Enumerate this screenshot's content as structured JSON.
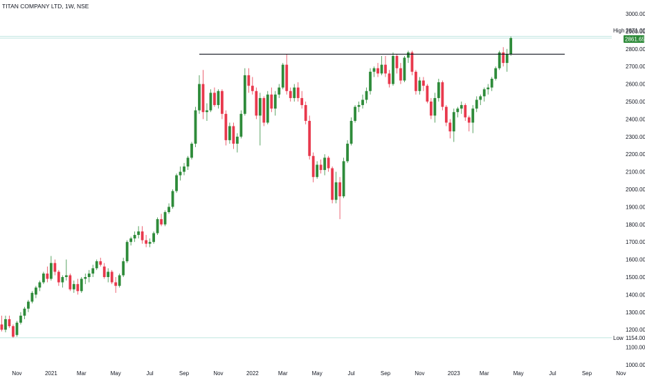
{
  "title": "TITAN COMPANY LTD, 1W, NSE",
  "colors": {
    "up": "#2e8b3a",
    "down": "#e8394d",
    "resistance": "#131722",
    "guide": "#a8dcd4",
    "lastPriceTag": "#2e8b3a",
    "text": "#131722"
  },
  "markers": {
    "high": {
      "label": "High",
      "value": "2871.00"
    },
    "last": {
      "value": "2861.65"
    },
    "low": {
      "label": "Low",
      "value": "1154.00"
    }
  },
  "resistance_level": 2770,
  "chart_data": {
    "type": "candlestick",
    "title": "TITAN COMPANY LTD, 1W, NSE",
    "ylim": [
      980,
      3020
    ],
    "y_ticks": [
      "1000.00",
      "1100.00",
      "1200.00",
      "1300.00",
      "1400.00",
      "1500.00",
      "1600.00",
      "1700.00",
      "1800.00",
      "1900.00",
      "2000.00",
      "2100.00",
      "2200.00",
      "2300.00",
      "2400.00",
      "2500.00",
      "2600.00",
      "2700.00",
      "2800.00",
      "2900.00",
      "3000.00"
    ],
    "x_ticks": [
      {
        "label": "Nov",
        "i": 4
      },
      {
        "label": "2021",
        "i": 13
      },
      {
        "label": "Mar",
        "i": 21
      },
      {
        "label": "May",
        "i": 30
      },
      {
        "label": "Jul",
        "i": 39
      },
      {
        "label": "Sep",
        "i": 48
      },
      {
        "label": "Nov",
        "i": 57
      },
      {
        "label": "2022",
        "i": 66
      },
      {
        "label": "Mar",
        "i": 74
      },
      {
        "label": "May",
        "i": 83
      },
      {
        "label": "Jul",
        "i": 92
      },
      {
        "label": "Sep",
        "i": 101
      },
      {
        "label": "Nov",
        "i": 110
      },
      {
        "label": "2023",
        "i": 119
      },
      {
        "label": "Mar",
        "i": 127
      },
      {
        "label": "May",
        "i": 136
      },
      {
        "label": "Jul",
        "i": 145
      },
      {
        "label": "Sep",
        "i": 154
      },
      {
        "label": "Nov",
        "i": 163
      }
    ],
    "ohlc": [
      [
        1230,
        1280,
        1190,
        1200
      ],
      [
        1200,
        1280,
        1185,
        1260
      ],
      [
        1260,
        1280,
        1210,
        1220
      ],
      [
        1220,
        1230,
        1154,
        1160
      ],
      [
        1170,
        1250,
        1160,
        1240
      ],
      [
        1240,
        1300,
        1230,
        1280
      ],
      [
        1280,
        1330,
        1260,
        1320
      ],
      [
        1320,
        1370,
        1300,
        1360
      ],
      [
        1360,
        1420,
        1350,
        1410
      ],
      [
        1400,
        1450,
        1380,
        1440
      ],
      [
        1440,
        1480,
        1420,
        1470
      ],
      [
        1470,
        1530,
        1460,
        1520
      ],
      [
        1520,
        1560,
        1470,
        1490
      ],
      [
        1490,
        1620,
        1480,
        1580
      ],
      [
        1580,
        1600,
        1510,
        1530
      ],
      [
        1530,
        1540,
        1450,
        1470
      ],
      [
        1470,
        1510,
        1440,
        1500
      ],
      [
        1500,
        1600,
        1480,
        1510
      ],
      [
        1510,
        1520,
        1420,
        1430
      ],
      [
        1430,
        1480,
        1410,
        1460
      ],
      [
        1460,
        1490,
        1400,
        1420
      ],
      [
        1420,
        1500,
        1410,
        1490
      ],
      [
        1490,
        1520,
        1460,
        1500
      ],
      [
        1500,
        1540,
        1470,
        1520
      ],
      [
        1520,
        1570,
        1500,
        1550
      ],
      [
        1550,
        1600,
        1540,
        1590
      ],
      [
        1590,
        1610,
        1560,
        1570
      ],
      [
        1560,
        1580,
        1490,
        1500
      ],
      [
        1500,
        1550,
        1470,
        1530
      ],
      [
        1530,
        1540,
        1460,
        1470
      ],
      [
        1470,
        1500,
        1410,
        1450
      ],
      [
        1450,
        1520,
        1440,
        1510
      ],
      [
        1510,
        1610,
        1500,
        1590
      ],
      [
        1590,
        1710,
        1580,
        1700
      ],
      [
        1700,
        1730,
        1680,
        1720
      ],
      [
        1720,
        1760,
        1700,
        1740
      ],
      [
        1740,
        1790,
        1720,
        1760
      ],
      [
        1760,
        1790,
        1690,
        1710
      ],
      [
        1710,
        1740,
        1670,
        1690
      ],
      [
        1690,
        1720,
        1670,
        1700
      ],
      [
        1700,
        1760,
        1690,
        1750
      ],
      [
        1750,
        1840,
        1740,
        1830
      ],
      [
        1830,
        1860,
        1790,
        1800
      ],
      [
        1800,
        1880,
        1790,
        1870
      ],
      [
        1870,
        1920,
        1860,
        1900
      ],
      [
        1900,
        2000,
        1890,
        1990
      ],
      [
        1990,
        2090,
        1980,
        2080
      ],
      [
        2080,
        2130,
        2050,
        2100
      ],
      [
        2100,
        2150,
        2080,
        2130
      ],
      [
        2130,
        2190,
        2110,
        2180
      ],
      [
        2180,
        2270,
        2170,
        2260
      ],
      [
        2260,
        2470,
        2240,
        2450
      ],
      [
        2450,
        2650,
        2430,
        2600
      ],
      [
        2600,
        2680,
        2400,
        2440
      ],
      [
        2440,
        2490,
        2390,
        2450
      ],
      [
        2450,
        2570,
        2440,
        2550
      ],
      [
        2550,
        2580,
        2470,
        2480
      ],
      [
        2480,
        2570,
        2460,
        2560
      ],
      [
        2560,
        2570,
        2400,
        2430
      ],
      [
        2430,
        2450,
        2250,
        2280
      ],
      [
        2280,
        2380,
        2260,
        2360
      ],
      [
        2360,
        2380,
        2230,
        2260
      ],
      [
        2260,
        2320,
        2210,
        2300
      ],
      [
        2300,
        2450,
        2290,
        2430
      ],
      [
        2430,
        2690,
        2420,
        2650
      ],
      [
        2650,
        2690,
        2550,
        2590
      ],
      [
        2590,
        2640,
        2540,
        2560
      ],
      [
        2560,
        2580,
        2400,
        2420
      ],
      [
        2420,
        2550,
        2250,
        2520
      ],
      [
        2520,
        2530,
        2360,
        2380
      ],
      [
        2380,
        2560,
        2370,
        2540
      ],
      [
        2540,
        2580,
        2440,
        2460
      ],
      [
        2460,
        2560,
        2420,
        2540
      ],
      [
        2540,
        2600,
        2520,
        2580
      ],
      [
        2580,
        2720,
        2570,
        2710
      ],
      [
        2710,
        2770,
        2540,
        2560
      ],
      [
        2560,
        2580,
        2500,
        2520
      ],
      [
        2520,
        2600,
        2500,
        2580
      ],
      [
        2580,
        2610,
        2500,
        2520
      ],
      [
        2520,
        2560,
        2460,
        2480
      ],
      [
        2480,
        2500,
        2370,
        2390
      ],
      [
        2390,
        2420,
        2170,
        2190
      ],
      [
        2190,
        2210,
        2040,
        2070
      ],
      [
        2070,
        2160,
        2060,
        2140
      ],
      [
        2140,
        2170,
        2090,
        2110
      ],
      [
        2110,
        2200,
        2080,
        2180
      ],
      [
        2180,
        2190,
        2100,
        2120
      ],
      [
        2120,
        2130,
        1920,
        1940
      ],
      [
        1940,
        2100,
        1920,
        2040
      ],
      [
        2040,
        2070,
        1830,
        1960
      ],
      [
        1960,
        2180,
        1950,
        2160
      ],
      [
        2160,
        2280,
        2150,
        2260
      ],
      [
        2260,
        2410,
        2250,
        2390
      ],
      [
        2390,
        2480,
        2380,
        2470
      ],
      [
        2470,
        2500,
        2440,
        2480
      ],
      [
        2480,
        2540,
        2460,
        2510
      ],
      [
        2510,
        2580,
        2490,
        2560
      ],
      [
        2560,
        2690,
        2540,
        2670
      ],
      [
        2670,
        2700,
        2640,
        2690
      ],
      [
        2690,
        2720,
        2640,
        2660
      ],
      [
        2660,
        2760,
        2650,
        2710
      ],
      [
        2710,
        2760,
        2640,
        2660
      ],
      [
        2660,
        2680,
        2580,
        2600
      ],
      [
        2600,
        2780,
        2590,
        2760
      ],
      [
        2760,
        2770,
        2660,
        2690
      ],
      [
        2690,
        2720,
        2600,
        2620
      ],
      [
        2620,
        2760,
        2610,
        2750
      ],
      [
        2750,
        2790,
        2720,
        2780
      ],
      [
        2780,
        2790,
        2650,
        2670
      ],
      [
        2670,
        2680,
        2540,
        2560
      ],
      [
        2560,
        2640,
        2540,
        2620
      ],
      [
        2620,
        2640,
        2560,
        2590
      ],
      [
        2590,
        2600,
        2490,
        2500
      ],
      [
        2500,
        2520,
        2400,
        2420
      ],
      [
        2420,
        2550,
        2380,
        2520
      ],
      [
        2520,
        2630,
        2500,
        2610
      ],
      [
        2610,
        2620,
        2450,
        2470
      ],
      [
        2470,
        2480,
        2360,
        2380
      ],
      [
        2380,
        2400,
        2290,
        2330
      ],
      [
        2330,
        2460,
        2270,
        2440
      ],
      [
        2440,
        2470,
        2410,
        2460
      ],
      [
        2460,
        2500,
        2430,
        2480
      ],
      [
        2480,
        2490,
        2390,
        2410
      ],
      [
        2410,
        2420,
        2330,
        2380
      ],
      [
        2380,
        2480,
        2320,
        2460
      ],
      [
        2460,
        2530,
        2440,
        2510
      ],
      [
        2510,
        2540,
        2480,
        2530
      ],
      [
        2530,
        2580,
        2500,
        2570
      ],
      [
        2570,
        2600,
        2540,
        2580
      ],
      [
        2580,
        2640,
        2560,
        2630
      ],
      [
        2630,
        2700,
        2620,
        2690
      ],
      [
        2690,
        2790,
        2680,
        2780
      ],
      [
        2780,
        2810,
        2700,
        2720
      ],
      [
        2720,
        2800,
        2670,
        2770
      ],
      [
        2770,
        2871,
        2760,
        2861.65
      ]
    ]
  }
}
